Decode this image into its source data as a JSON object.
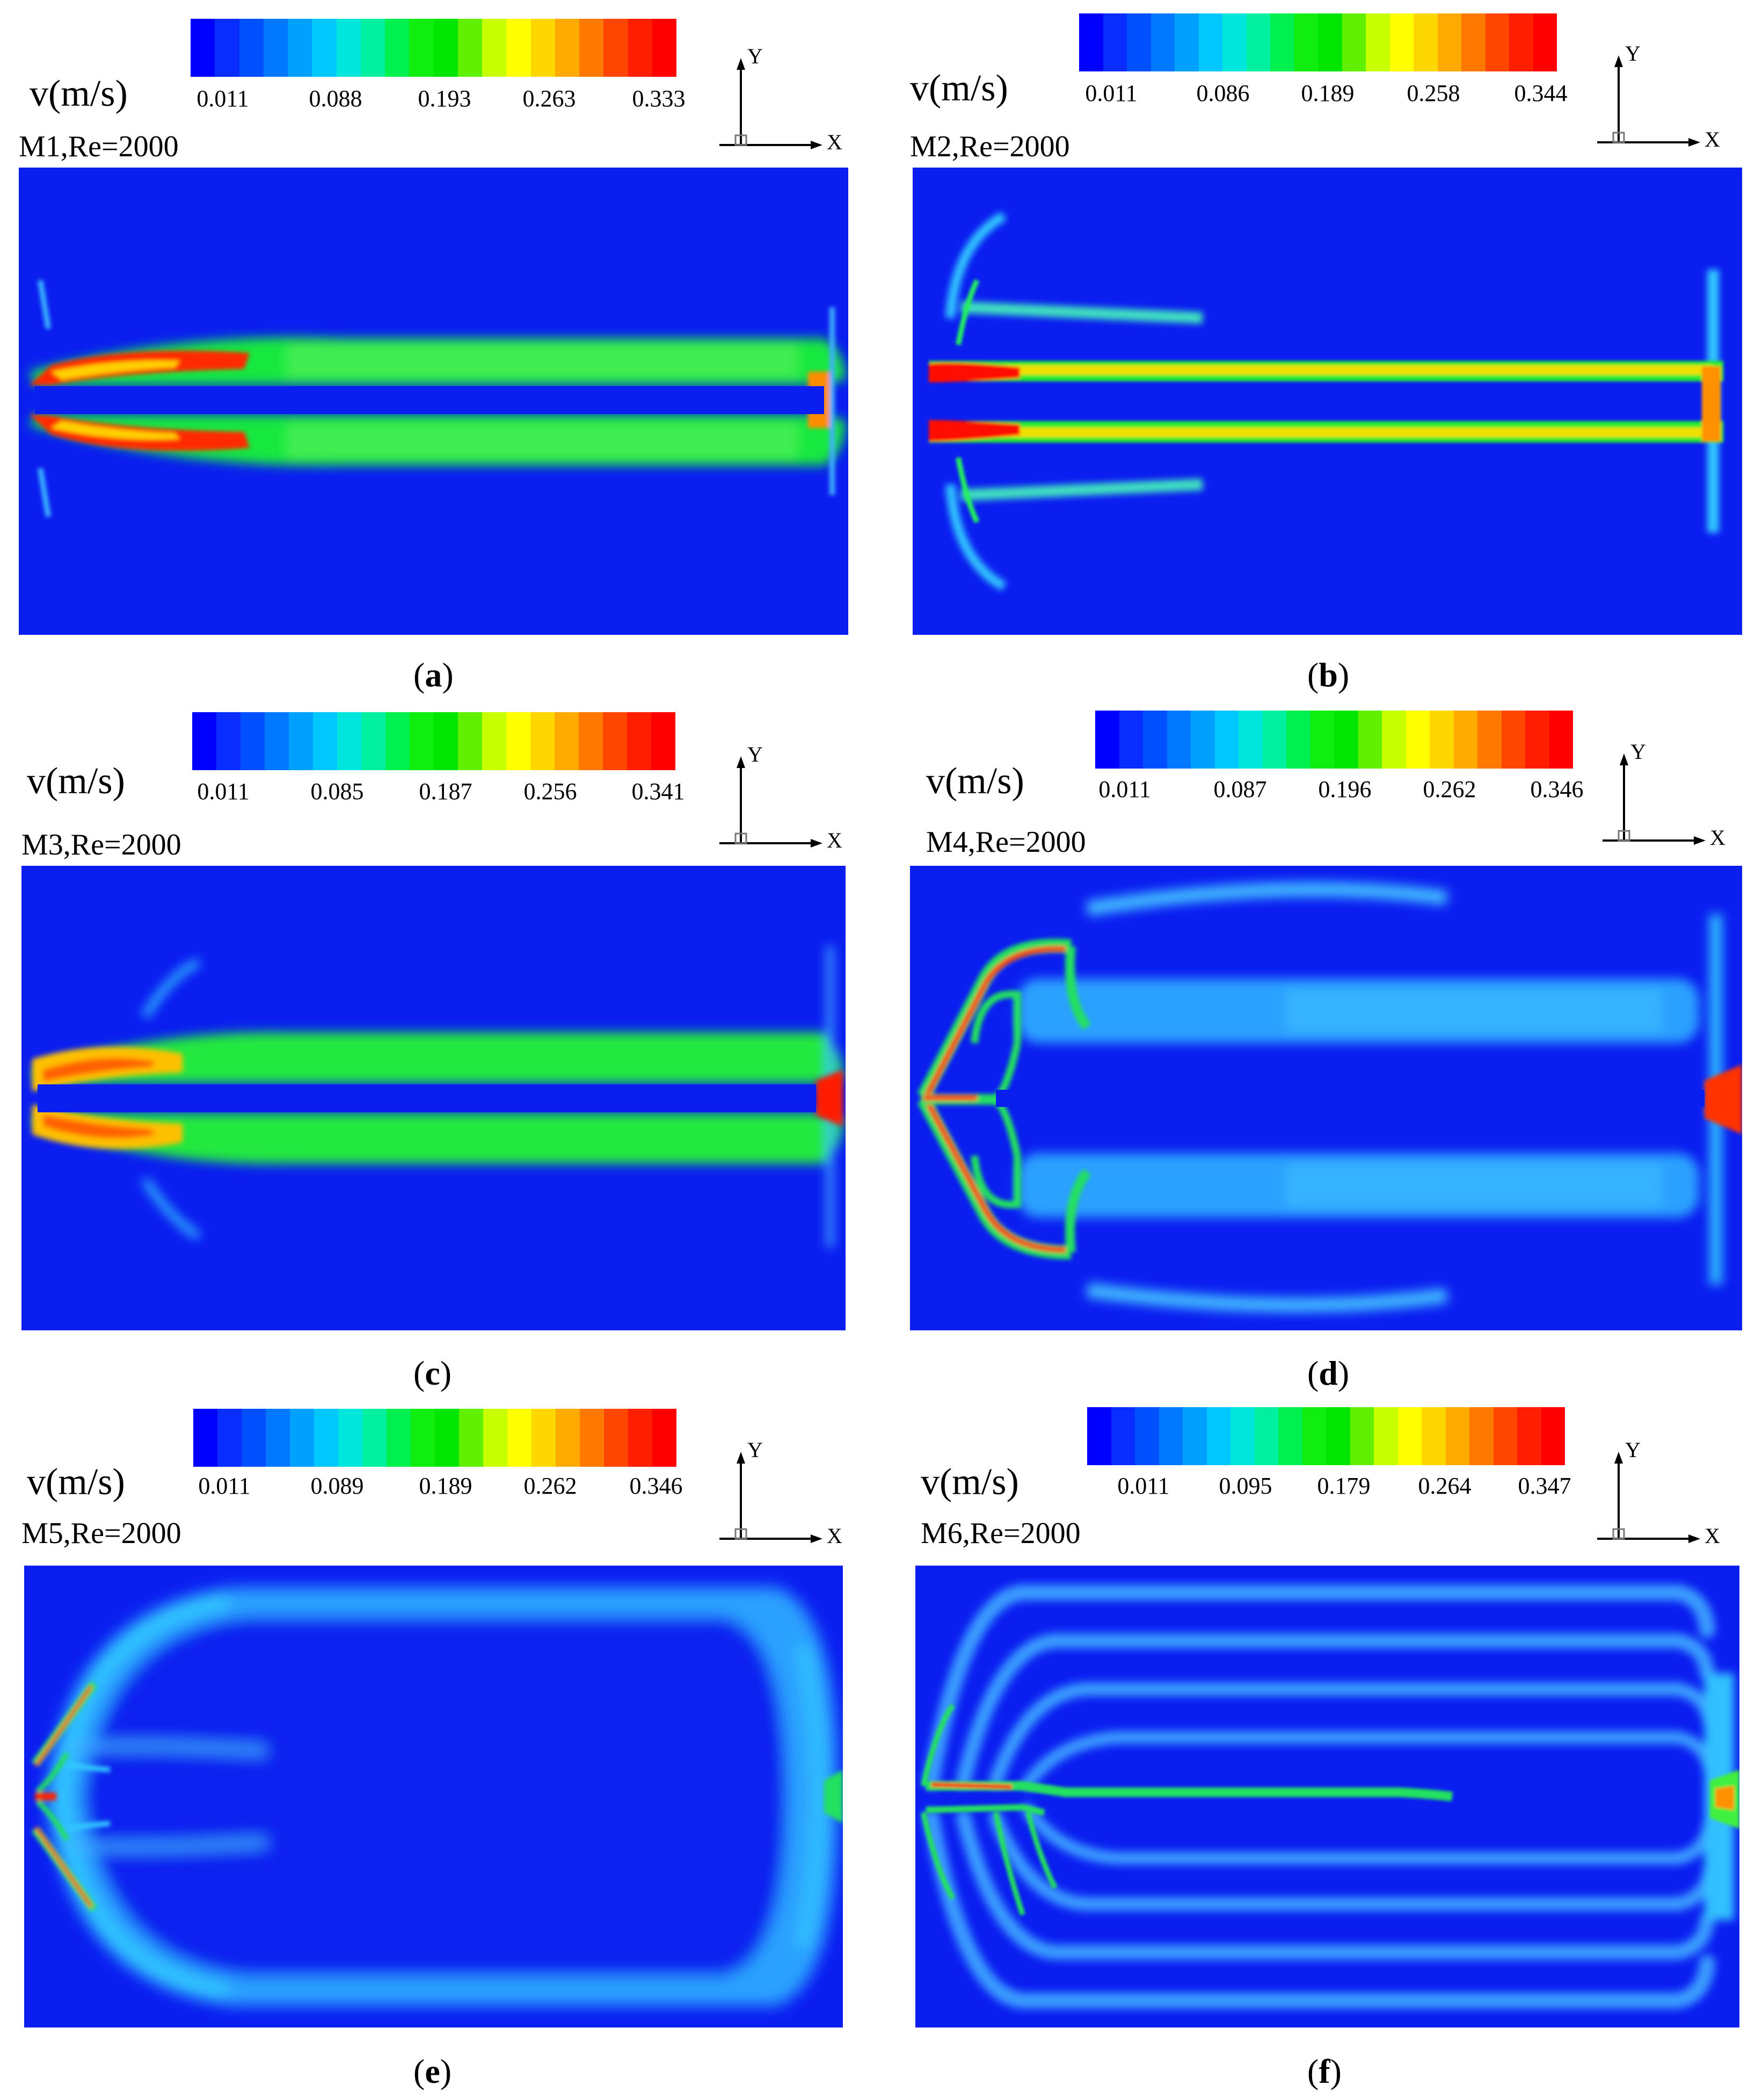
{
  "colormap": [
    "#0000ff",
    "#0a2dff",
    "#0050ff",
    "#0078ff",
    "#00a0ff",
    "#00c8ff",
    "#00e6dc",
    "#00f0a0",
    "#00f050",
    "#10ee10",
    "#00e600",
    "#60f000",
    "#c8ff00",
    "#ffff00",
    "#ffd700",
    "#ffaa00",
    "#ff7800",
    "#ff4600",
    "#ff1e00",
    "#ff0000"
  ],
  "panels": [
    {
      "id": "a",
      "velocity_label": "v(m/s)",
      "ticks": [
        "0.011",
        "0.088",
        "0.193",
        "0.263",
        "0.333"
      ],
      "model_label": "M1,Re=2000",
      "caption_open": "(",
      "caption_letter": "a",
      "caption_close": ")",
      "axis_y": "Y",
      "axis_x": "X"
    },
    {
      "id": "b",
      "velocity_label": "v(m/s)",
      "ticks": [
        "0.011",
        "0.086",
        "0.189",
        "0.258",
        "0.344"
      ],
      "model_label": "M2,Re=2000",
      "caption_open": "(",
      "caption_letter": "b",
      "caption_close": ")",
      "axis_y": "Y",
      "axis_x": "X"
    },
    {
      "id": "c",
      "velocity_label": "v(m/s)",
      "ticks": [
        "0.011",
        "0.085",
        "0.187",
        "0.256",
        "0.341"
      ],
      "model_label": "M3,Re=2000",
      "caption_open": "(",
      "caption_letter": "c",
      "caption_close": ")",
      "axis_y": "Y",
      "axis_x": "X"
    },
    {
      "id": "d",
      "velocity_label": "v(m/s)",
      "ticks": [
        "0.011",
        "0.087",
        "0.196",
        "0.262",
        "0.346"
      ],
      "model_label": "M4,Re=2000",
      "caption_open": "(",
      "caption_letter": "d",
      "caption_close": ")",
      "axis_y": "Y",
      "axis_x": "X"
    },
    {
      "id": "e",
      "velocity_label": "v(m/s)",
      "ticks": [
        "0.011",
        "0.089",
        "0.189",
        "0.262",
        "0.346"
      ],
      "model_label": "M5,Re=2000",
      "caption_open": "(",
      "caption_letter": "e",
      "caption_close": ")",
      "axis_y": "Y",
      "axis_x": "X"
    },
    {
      "id": "f",
      "velocity_label": "v(m/s)",
      "ticks": [
        "0.011",
        "0.095",
        "0.179",
        "0.264",
        "0.347"
      ],
      "model_label": "M6,Re=2000",
      "caption_open": "(",
      "caption_letter": "f",
      "caption_close": ")",
      "axis_y": "Y",
      "axis_x": "X"
    }
  ]
}
